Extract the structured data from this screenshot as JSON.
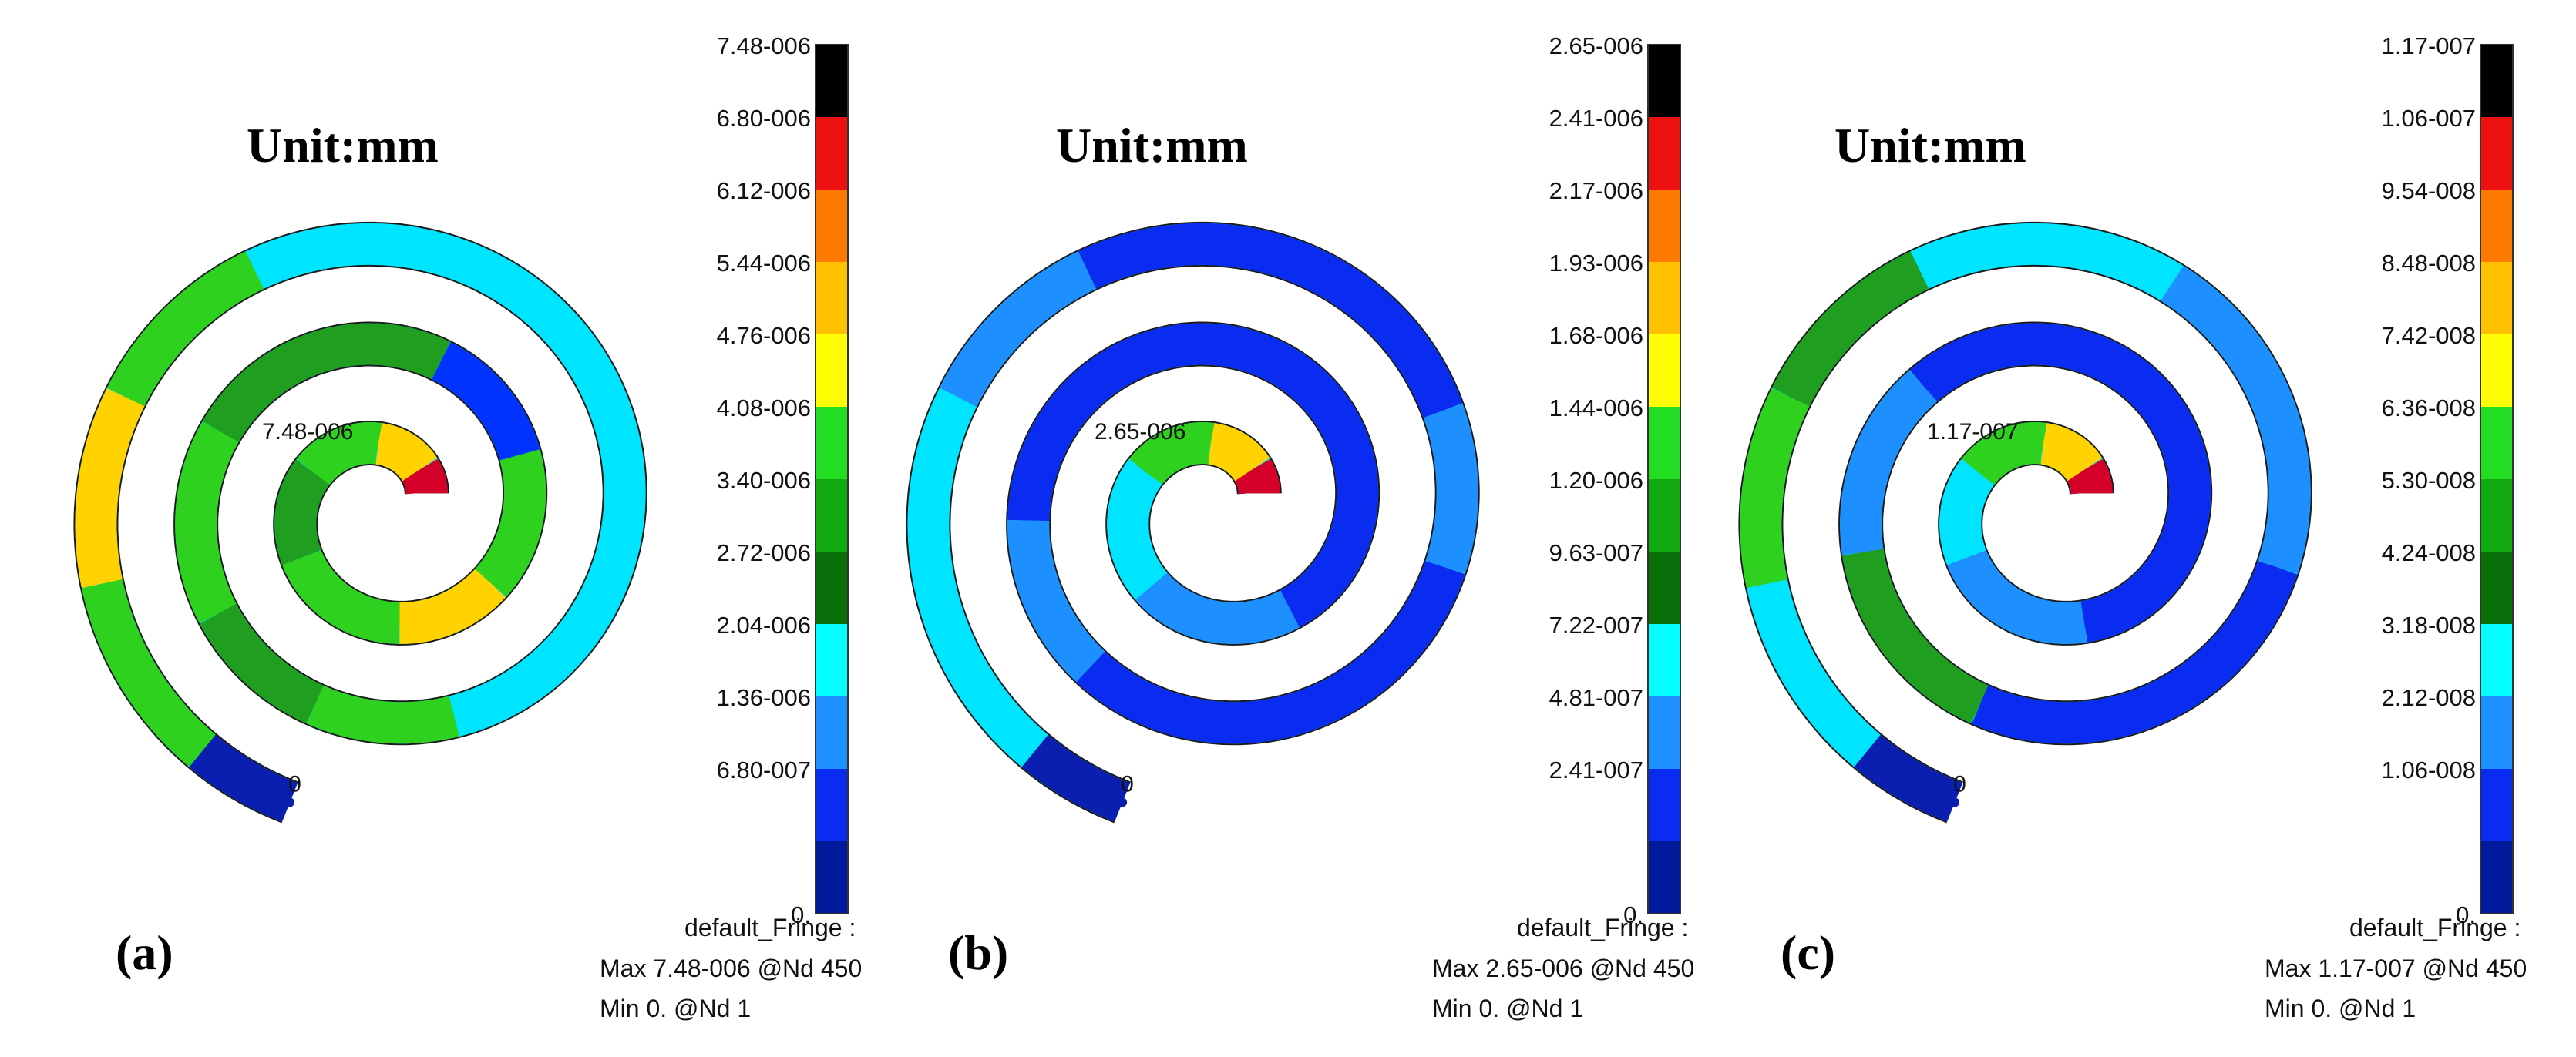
{
  "figure": {
    "panels": [
      {
        "id": "a",
        "label": "(a)",
        "unit_title": "Unit:mm",
        "max_node_label": "7.48-006",
        "min_node_label": "0",
        "scale_ticks": [
          "7.48-006",
          "6.80-006",
          "6.12-006",
          "5.44-006",
          "4.76-006",
          "4.08-006",
          "3.40-006",
          "2.72-006",
          "2.04-006",
          "1.36-006",
          "6.80-007",
          "0."
        ],
        "fringe_title": "default_Fringe :",
        "fringe_max": "Max 7.48-006 @Nd 450",
        "fringe_min": "Min  0. @Nd 1",
        "outer_color": "#00e5ff",
        "segments": [
          {
            "from": 0.0,
            "to": 0.03,
            "color": "#d4002a"
          },
          {
            "from": 0.03,
            "to": 0.08,
            "color": "#ffd200"
          },
          {
            "from": 0.08,
            "to": 0.14,
            "color": "#2fd11f"
          },
          {
            "from": 0.14,
            "to": 0.2,
            "color": "#1f9e1f"
          },
          {
            "from": 0.2,
            "to": 0.27,
            "color": "#2fd11f"
          },
          {
            "from": 0.27,
            "to": 0.32,
            "color": "#ffd200"
          },
          {
            "from": 0.32,
            "to": 0.38,
            "color": "#2fd11f"
          },
          {
            "from": 0.38,
            "to": 0.43,
            "color": "#0033ff"
          },
          {
            "from": 0.43,
            "to": 0.52,
            "color": "#1f9e1f"
          },
          {
            "from": 0.52,
            "to": 0.58,
            "color": "#2fd11f"
          },
          {
            "from": 0.58,
            "to": 0.62,
            "color": "#1f9e1f"
          },
          {
            "from": 0.62,
            "to": 0.66,
            "color": "#2fd11f"
          },
          {
            "from": 0.66,
            "to": 0.7,
            "color": "#00e5ff"
          },
          {
            "from": 0.86,
            "to": 0.9,
            "color": "#2fd11f"
          },
          {
            "from": 0.9,
            "to": 0.94,
            "color": "#ffd200"
          },
          {
            "from": 0.94,
            "to": 0.98,
            "color": "#2fd11f"
          },
          {
            "from": 0.98,
            "to": 1.0,
            "color": "#0a1fb0"
          }
        ]
      },
      {
        "id": "b",
        "label": "(b)",
        "unit_title": "Unit:mm",
        "max_node_label": "2.65-006",
        "min_node_label": "0",
        "scale_ticks": [
          "2.65-006",
          "2.41-006",
          "2.17-006",
          "1.93-006",
          "1.68-006",
          "1.44-006",
          "1.20-006",
          "9.63-007",
          "7.22-007",
          "4.81-007",
          "2.41-007",
          "0."
        ],
        "fringe_title": "default_Fringe :",
        "fringe_max": "Max 2.65-006 @Nd 450",
        "fringe_min": "Min  0. @Nd 1",
        "outer_color": "#00e5ff",
        "segments": [
          {
            "from": 0.0,
            "to": 0.03,
            "color": "#d4002a"
          },
          {
            "from": 0.03,
            "to": 0.08,
            "color": "#ffd200"
          },
          {
            "from": 0.08,
            "to": 0.14,
            "color": "#2fd11f"
          },
          {
            "from": 0.14,
            "to": 0.22,
            "color": "#00e5ff"
          },
          {
            "from": 0.22,
            "to": 0.3,
            "color": "#1e8fff"
          },
          {
            "from": 0.3,
            "to": 0.55,
            "color": "#0a2cf0"
          },
          {
            "from": 0.55,
            "to": 0.6,
            "color": "#1e8fff"
          },
          {
            "from": 0.6,
            "to": 0.72,
            "color": "#0a2cf0"
          },
          {
            "from": 0.72,
            "to": 0.76,
            "color": "#1e8fff"
          },
          {
            "from": 0.76,
            "to": 0.86,
            "color": "#0a2cf0"
          },
          {
            "from": 0.86,
            "to": 0.9,
            "color": "#1e8fff"
          },
          {
            "from": 0.98,
            "to": 1.0,
            "color": "#0a1fb0"
          }
        ]
      },
      {
        "id": "c",
        "label": "(c)",
        "unit_title": "Unit:mm",
        "max_node_label": "1.17-007",
        "min_node_label": "0",
        "scale_ticks": [
          "1.17-007",
          "1.06-007",
          "9.54-008",
          "8.48-008",
          "7.42-008",
          "6.36-008",
          "5.30-008",
          "4.24-008",
          "3.18-008",
          "2.12-008",
          "1.06-008",
          "0."
        ],
        "fringe_title": "default_Fringe :",
        "fringe_max": "Max 1.17-007 @Nd 450",
        "fringe_min": "Min  0. @Nd 1",
        "outer_color": "#00e5ff",
        "segments": [
          {
            "from": 0.0,
            "to": 0.03,
            "color": "#d4002a"
          },
          {
            "from": 0.03,
            "to": 0.08,
            "color": "#ffd200"
          },
          {
            "from": 0.08,
            "to": 0.14,
            "color": "#2fd11f"
          },
          {
            "from": 0.14,
            "to": 0.2,
            "color": "#00e5ff"
          },
          {
            "from": 0.2,
            "to": 0.28,
            "color": "#1e8fff"
          },
          {
            "from": 0.28,
            "to": 0.5,
            "color": "#0a2cf0"
          },
          {
            "from": 0.5,
            "to": 0.56,
            "color": "#1e8fff"
          },
          {
            "from": 0.56,
            "to": 0.62,
            "color": "#1f9e1f"
          },
          {
            "from": 0.62,
            "to": 0.72,
            "color": "#0a2cf0"
          },
          {
            "from": 0.72,
            "to": 0.8,
            "color": "#1e8fff"
          },
          {
            "from": 0.86,
            "to": 0.9,
            "color": "#1f9e1f"
          },
          {
            "from": 0.9,
            "to": 0.94,
            "color": "#2fd11f"
          },
          {
            "from": 0.98,
            "to": 1.0,
            "color": "#0a1fb0"
          }
        ]
      }
    ],
    "colorbar_colors": [
      "#000000",
      "#ee1111",
      "#ff7a00",
      "#ffc000",
      "#ffff00",
      "#22dd22",
      "#11aa11",
      "#086e08",
      "#00ffff",
      "#1e90ff",
      "#0a2cf0",
      "#001a9c"
    ]
  }
}
